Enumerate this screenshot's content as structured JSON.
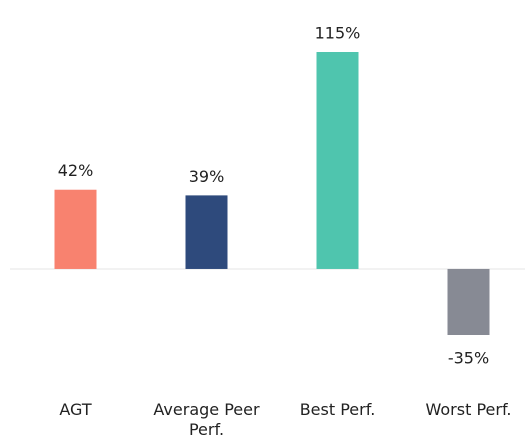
{
  "chart_data": {
    "type": "bar",
    "categories": [
      "AGT",
      "Average Peer Perf.",
      "Best Perf.",
      "Worst Perf."
    ],
    "values": [
      42,
      39,
      115,
      -35
    ],
    "value_labels": [
      "42%",
      "39%",
      "115%",
      "-35%"
    ],
    "colors": [
      "#f8826f",
      "#2e4a7c",
      "#4fc5ae",
      "#878a94"
    ]
  }
}
